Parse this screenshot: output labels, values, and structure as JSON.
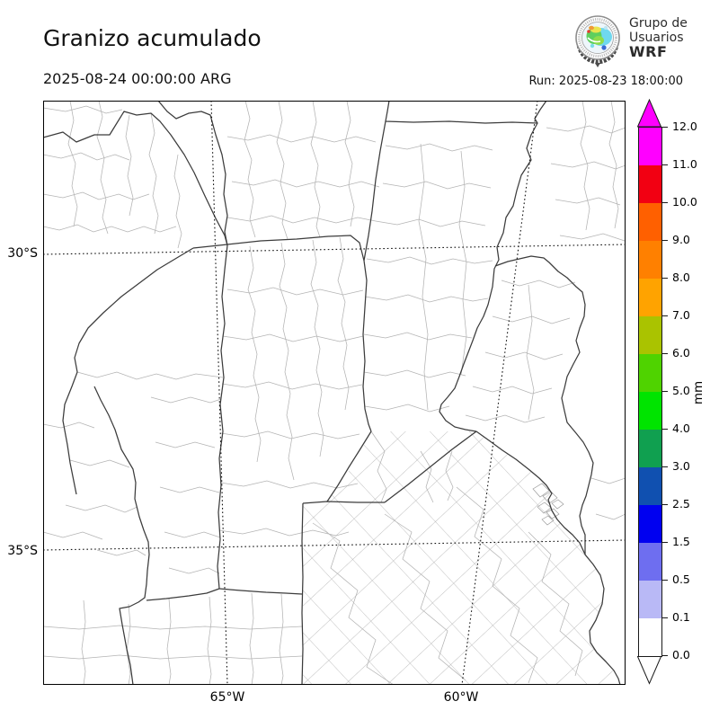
{
  "header": {
    "title": "Granizo acumulado",
    "valid_time": "2025-08-24 00:00:00 ARG",
    "run_label": "Run: 2025-08-23 18:00:00"
  },
  "logo": {
    "line1": "Grupo de",
    "line2": "Usuarios",
    "line3": "WRF"
  },
  "map": {
    "y_ticks": [
      {
        "label": "30°S"
      },
      {
        "label": "35°S"
      }
    ],
    "x_ticks": [
      {
        "label": "65°W"
      },
      {
        "label": "60°W"
      }
    ]
  },
  "colorbar": {
    "unit": "mm",
    "tick_labels": [
      "12.0",
      "11.0",
      "10.0",
      "9.0",
      "8.0",
      "7.0",
      "6.0",
      "5.0",
      "4.0",
      "3.0",
      "2.5",
      "1.5",
      "0.5",
      "0.1",
      "0.0"
    ],
    "segment_colors_top_to_bottom": [
      "#FF00FF",
      "#F20012",
      "#FF6000",
      "#FF8000",
      "#FFA300",
      "#AAC300",
      "#4FD300",
      "#00E400",
      "#10A050",
      "#1050B0",
      "#0000F0",
      "#6E6EF0",
      "#B9B9F6",
      "#FFFFFF"
    ],
    "over_color": "#FF00FF",
    "under_color": "#FFFFFF"
  }
}
